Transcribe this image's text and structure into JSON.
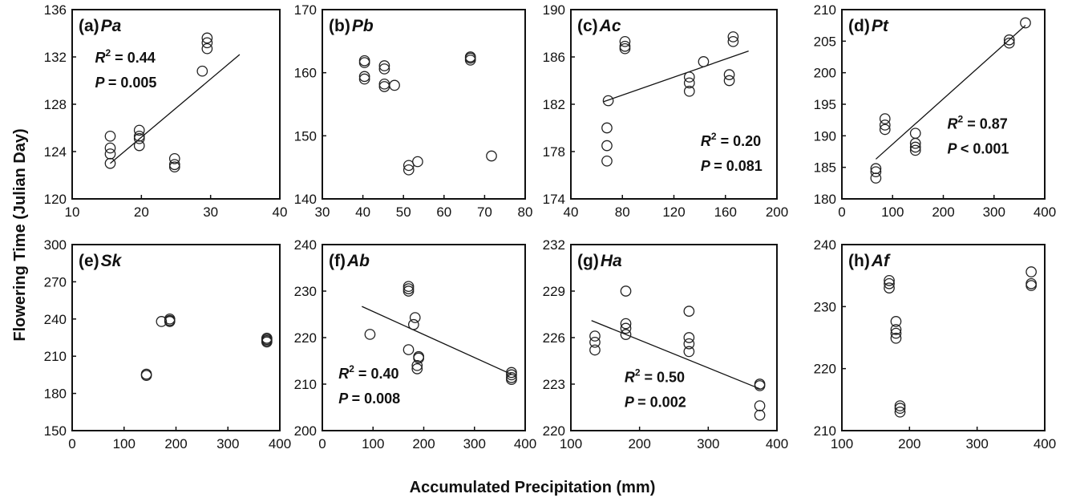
{
  "figure": {
    "ylabel": "Flowering Time (Julian Day)",
    "xlabel": "Accumulated Precipitation (mm)"
  },
  "chart_data": [
    {
      "type": "scatter",
      "letter": "(a)",
      "species": "Pa",
      "xlim": [
        10,
        40
      ],
      "xticks": [
        10,
        20,
        30,
        40
      ],
      "ylim": [
        120,
        136
      ],
      "yticks": [
        120,
        124,
        128,
        132,
        136
      ],
      "points": [
        [
          15.5,
          125.3
        ],
        [
          15.5,
          124.3
        ],
        [
          15.5,
          123.8
        ],
        [
          15.5,
          123.0
        ],
        [
          19.7,
          125.8
        ],
        [
          19.7,
          125.3
        ],
        [
          19.7,
          125.1
        ],
        [
          19.7,
          124.5
        ],
        [
          24.8,
          123.4
        ],
        [
          24.8,
          122.9
        ],
        [
          24.8,
          122.7
        ],
        [
          28.8,
          130.8
        ],
        [
          29.5,
          133.6
        ],
        [
          29.5,
          133.2
        ],
        [
          29.5,
          132.7
        ]
      ],
      "fit": [
        [
          15.5,
          123.0
        ],
        [
          34.2,
          132.2
        ]
      ],
      "r2": "0.44",
      "p": "= 0.005",
      "stats_anchor": "upper-left"
    },
    {
      "type": "scatter",
      "letter": "(b)",
      "species": "Pb",
      "xlim": [
        30,
        80
      ],
      "xticks": [
        30,
        40,
        50,
        60,
        70,
        80
      ],
      "ylim": [
        140,
        170
      ],
      "yticks": [
        140,
        150,
        160,
        170
      ],
      "points": [
        [
          40.4,
          161.9
        ],
        [
          40.4,
          161.6
        ],
        [
          40.4,
          159.4
        ],
        [
          40.4,
          159.0
        ],
        [
          45.3,
          161.1
        ],
        [
          45.3,
          160.6
        ],
        [
          45.3,
          158.2
        ],
        [
          45.3,
          157.8
        ],
        [
          47.8,
          158.0
        ],
        [
          51.3,
          145.3
        ],
        [
          51.3,
          144.6
        ],
        [
          53.5,
          145.9
        ],
        [
          66.5,
          162.5
        ],
        [
          66.5,
          162.3
        ],
        [
          66.5,
          162.0
        ],
        [
          71.7,
          146.8
        ]
      ],
      "fit": null
    },
    {
      "type": "scatter",
      "letter": "(c)",
      "species": "Ac",
      "xlim": [
        40,
        200
      ],
      "xticks": [
        40,
        80,
        120,
        160,
        200
      ],
      "ylim": [
        174,
        190
      ],
      "yticks": [
        174,
        178,
        182,
        186,
        190
      ],
      "points": [
        [
          69,
          182.3
        ],
        [
          68,
          180.0
        ],
        [
          68,
          178.5
        ],
        [
          68,
          177.2
        ],
        [
          82,
          187.3
        ],
        [
          82,
          186.9
        ],
        [
          82,
          186.7
        ],
        [
          132,
          184.3
        ],
        [
          132,
          183.8
        ],
        [
          132,
          183.1
        ],
        [
          143,
          185.6
        ],
        [
          163,
          184.5
        ],
        [
          163,
          184.0
        ],
        [
          166,
          187.7
        ],
        [
          166,
          187.3
        ]
      ],
      "fit": [
        [
          65,
          182.2
        ],
        [
          178,
          186.5
        ]
      ],
      "r2": "0.20",
      "p": "= 0.081",
      "stats_anchor": "lower-right"
    },
    {
      "type": "scatter",
      "letter": "(d)",
      "species": "Pt",
      "xlim": [
        0,
        400
      ],
      "xticks": [
        0,
        100,
        200,
        300,
        400
      ],
      "ylim": [
        180,
        210
      ],
      "yticks": [
        180,
        185,
        190,
        195,
        200,
        205,
        210
      ],
      "points": [
        [
          67,
          184.8
        ],
        [
          67,
          184.3
        ],
        [
          67,
          183.3
        ],
        [
          85,
          192.7
        ],
        [
          85,
          191.7
        ],
        [
          85,
          191.0
        ],
        [
          145,
          190.4
        ],
        [
          145,
          188.8
        ],
        [
          145,
          188.2
        ],
        [
          145,
          187.7
        ],
        [
          330,
          205.2
        ],
        [
          330,
          204.7
        ],
        [
          362,
          207.9
        ]
      ],
      "fit": [
        [
          67,
          186.3
        ],
        [
          362,
          207.5
        ]
      ],
      "r2": "0.87",
      "p": "< 0.001",
      "stats_anchor": "middle-right"
    },
    {
      "type": "scatter",
      "letter": "(e)",
      "species": "Sk",
      "xlim": [
        0,
        400
      ],
      "xticks": [
        0,
        100,
        200,
        300,
        400
      ],
      "ylim": [
        150,
        300
      ],
      "yticks": [
        150,
        180,
        210,
        240,
        270,
        300
      ],
      "points": [
        [
          143,
          195.5
        ],
        [
          143,
          194.5
        ],
        [
          172,
          238.0
        ],
        [
          188,
          240.0
        ],
        [
          188,
          238.8
        ],
        [
          188,
          238.0
        ],
        [
          375,
          224.5
        ],
        [
          375,
          223.5
        ],
        [
          375,
          222.5
        ],
        [
          375,
          221.5
        ]
      ],
      "fit": null
    },
    {
      "type": "scatter",
      "letter": "(f)",
      "species": "Ab",
      "xlim": [
        0,
        400
      ],
      "xticks": [
        0,
        100,
        200,
        300,
        400
      ],
      "ylim": [
        200,
        240
      ],
      "yticks": [
        200,
        210,
        220,
        230,
        240
      ],
      "points": [
        [
          94,
          220.7
        ],
        [
          170,
          231.0
        ],
        [
          170,
          230.5
        ],
        [
          170,
          230.0
        ],
        [
          170,
          217.4
        ],
        [
          183,
          224.3
        ],
        [
          180,
          222.8
        ],
        [
          190,
          215.9
        ],
        [
          190,
          215.6
        ],
        [
          187,
          213.3
        ],
        [
          187,
          214.0
        ],
        [
          373,
          212.5
        ],
        [
          373,
          212.0
        ],
        [
          373,
          211.4
        ],
        [
          373,
          211.0
        ]
      ],
      "fit": [
        [
          78,
          226.7
        ],
        [
          373,
          212.1
        ]
      ],
      "r2": "0.40",
      "p": "= 0.008",
      "stats_anchor": "lower-left"
    },
    {
      "type": "scatter",
      "letter": "(g)",
      "species": "Ha",
      "xlim": [
        100,
        400
      ],
      "xticks": [
        100,
        200,
        300,
        400
      ],
      "ylim": [
        220,
        232
      ],
      "yticks": [
        220,
        223,
        226,
        229,
        232
      ],
      "points": [
        [
          135,
          226.1
        ],
        [
          135,
          225.7
        ],
        [
          135,
          225.2
        ],
        [
          180,
          229.0
        ],
        [
          180,
          226.9
        ],
        [
          180,
          226.6
        ],
        [
          180,
          226.2
        ],
        [
          272,
          227.7
        ],
        [
          272,
          226.0
        ],
        [
          272,
          225.6
        ],
        [
          272,
          225.1
        ],
        [
          375,
          223.0
        ],
        [
          375,
          222.9
        ],
        [
          375,
          221.6
        ],
        [
          375,
          221.0
        ]
      ],
      "fit": [
        [
          130,
          227.1
        ],
        [
          375,
          222.7
        ]
      ],
      "r2": "0.50",
      "p": "= 0.002",
      "stats_anchor": "lower-middle"
    },
    {
      "type": "scatter",
      "letter": "(h)",
      "species": "Af",
      "xlim": [
        100,
        400
      ],
      "xticks": [
        100,
        200,
        300,
        400
      ],
      "ylim": [
        210,
        240
      ],
      "yticks": [
        210,
        220,
        230,
        240
      ],
      "points": [
        [
          170,
          234.2
        ],
        [
          170,
          233.7
        ],
        [
          170,
          233.0
        ],
        [
          180,
          227.6
        ],
        [
          180,
          226.3
        ],
        [
          180,
          225.7
        ],
        [
          180,
          224.9
        ],
        [
          186,
          214.0
        ],
        [
          186,
          213.6
        ],
        [
          186,
          213.0
        ],
        [
          380,
          235.6
        ],
        [
          380,
          233.7
        ],
        [
          380,
          233.4
        ]
      ],
      "fit": null
    }
  ]
}
